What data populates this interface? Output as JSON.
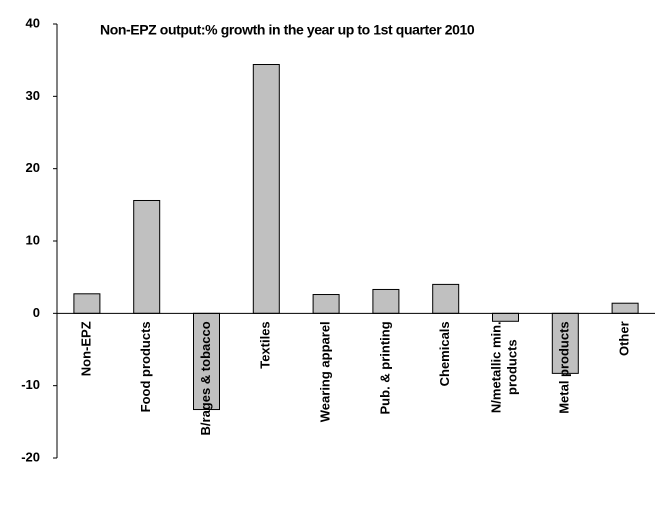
{
  "chart_data": {
    "type": "bar",
    "title": "Non-EPZ output:% growth in the year up to 1st quarter 2010",
    "categories": [
      "Non-EPZ",
      "Food products",
      "B/rages & tobacco",
      "Textiles",
      "Wearing apparel",
      "Pub. & printing",
      "Chemicals",
      "N/metallic min. products",
      "Metal products",
      "Other"
    ],
    "values": [
      2.7,
      15.6,
      -13.3,
      34.4,
      2.6,
      3.3,
      4.0,
      -1.1,
      -8.3,
      1.4
    ],
    "color": "#c0c0c0",
    "ylim": [
      -20,
      40
    ],
    "yticks": [
      -20,
      -10,
      0,
      10,
      20,
      30,
      40
    ],
    "grid": false
  }
}
